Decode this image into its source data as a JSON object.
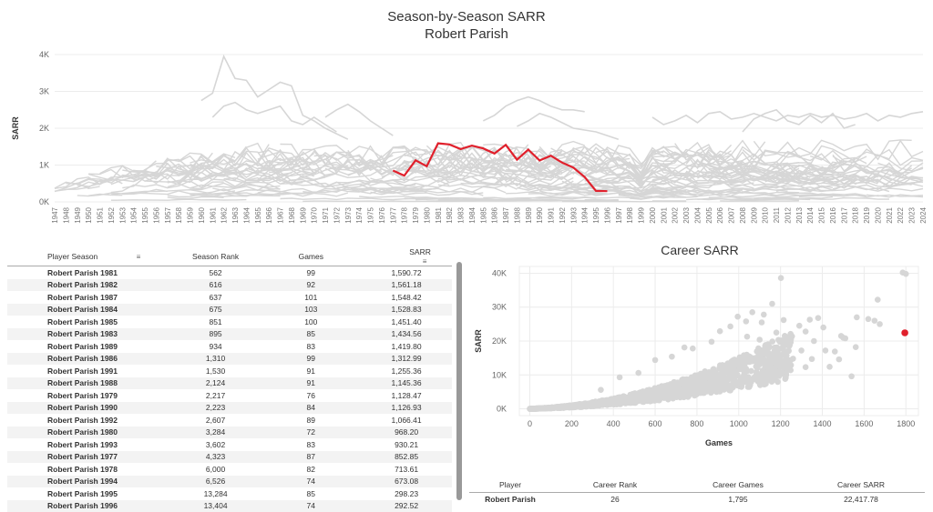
{
  "page": {
    "title": "Season-by-Season SARR",
    "subtitle": "Robert Parish",
    "career_title": "Career SARR"
  },
  "season_table": {
    "headers": [
      "Player Season",
      "Season Rank",
      "Games",
      "SARR"
    ],
    "rows": [
      [
        "Robert Parish 1981",
        "562",
        "99",
        "1,590.72"
      ],
      [
        "Robert Parish 1982",
        "616",
        "92",
        "1,561.18"
      ],
      [
        "Robert Parish 1987",
        "637",
        "101",
        "1,548.42"
      ],
      [
        "Robert Parish 1984",
        "675",
        "103",
        "1,528.83"
      ],
      [
        "Robert Parish 1985",
        "851",
        "100",
        "1,451.40"
      ],
      [
        "Robert Parish 1983",
        "895",
        "85",
        "1,434.56"
      ],
      [
        "Robert Parish 1989",
        "934",
        "83",
        "1,419.80"
      ],
      [
        "Robert Parish 1986",
        "1,310",
        "99",
        "1,312.99"
      ],
      [
        "Robert Parish 1991",
        "1,530",
        "91",
        "1,255.36"
      ],
      [
        "Robert Parish 1988",
        "2,124",
        "91",
        "1,145.36"
      ],
      [
        "Robert Parish 1979",
        "2,217",
        "76",
        "1,128.47"
      ],
      [
        "Robert Parish 1990",
        "2,223",
        "84",
        "1,126.93"
      ],
      [
        "Robert Parish 1992",
        "2,607",
        "89",
        "1,066.41"
      ],
      [
        "Robert Parish 1980",
        "3,284",
        "72",
        "968.20"
      ],
      [
        "Robert Parish 1993",
        "3,602",
        "83",
        "930.21"
      ],
      [
        "Robert Parish 1977",
        "4,323",
        "87",
        "852.85"
      ],
      [
        "Robert Parish 1978",
        "6,000",
        "82",
        "713.61"
      ],
      [
        "Robert Parish 1994",
        "6,526",
        "74",
        "673.08"
      ],
      [
        "Robert Parish 1995",
        "13,284",
        "85",
        "298.23"
      ],
      [
        "Robert Parish 1996",
        "13,404",
        "74",
        "292.52"
      ]
    ]
  },
  "career_table": {
    "headers": [
      "Player",
      "Career Rank",
      "Career Games",
      "Career SARR"
    ],
    "row": [
      "Robert Parish",
      "26",
      "1,795",
      "22,417.78"
    ]
  },
  "colors": {
    "highlight": "#e0202c",
    "background_series": "#d6d6d6",
    "grid": "#ececec"
  },
  "chart_data": [
    {
      "type": "line",
      "title": "Season-by-Season SARR",
      "subtitle": "Robert Parish",
      "xlabel": "",
      "ylabel": "SARR",
      "xlim": [
        1947,
        2024
      ],
      "ylim": [
        0,
        4000
      ],
      "y_ticks": [
        "0K",
        "1K",
        "2K",
        "3K",
        "4K"
      ],
      "grid": true,
      "highlight_series": {
        "name": "Robert Parish",
        "x": [
          1977,
          1978,
          1979,
          1980,
          1981,
          1982,
          1983,
          1984,
          1985,
          1986,
          1987,
          1988,
          1989,
          1990,
          1991,
          1992,
          1993,
          1994,
          1995,
          1996
        ],
        "y": [
          852.85,
          713.61,
          1128.47,
          968.2,
          1590.72,
          1561.18,
          1434.56,
          1528.83,
          1451.4,
          1312.99,
          1548.42,
          1145.36,
          1419.8,
          1126.93,
          1255.36,
          1066.41,
          930.21,
          673.08,
          298.23,
          292.52
        ]
      },
      "background_series": [
        {
          "x": [
            1960,
            1961,
            1962,
            1963,
            1964,
            1965,
            1966,
            1967,
            1968,
            1969,
            1970,
            1971,
            1972,
            1973
          ],
          "y": [
            2750,
            2950,
            3950,
            3350,
            3300,
            2850,
            3050,
            3250,
            3150,
            2350,
            2200,
            2000,
            1850,
            1700
          ]
        },
        {
          "x": [
            1961,
            1962,
            1963,
            1964,
            1965,
            1966,
            1967,
            1968,
            1969,
            1970,
            1971,
            1972
          ],
          "y": [
            2300,
            2600,
            2700,
            2500,
            2400,
            2500,
            2600,
            2200,
            2100,
            2300,
            2100,
            1900
          ]
        },
        {
          "x": [
            1971,
            1972,
            1973,
            1974,
            1975,
            1976,
            1977
          ],
          "y": [
            2300,
            2500,
            2650,
            2450,
            2200,
            2000,
            1800
          ]
        },
        {
          "x": [
            1985,
            1986,
            1987,
            1988,
            1989,
            1990,
            1991,
            1992,
            1993,
            1994
          ],
          "y": [
            2200,
            2350,
            2600,
            2750,
            2850,
            2750,
            2600,
            2500,
            2500,
            2450
          ]
        },
        {
          "x": [
            1988,
            1989,
            1990,
            1991,
            1992,
            1993,
            1994,
            1995,
            1996,
            1997
          ],
          "y": [
            2050,
            2200,
            2400,
            2300,
            2150,
            2000,
            1950,
            1900,
            1800,
            1700
          ]
        },
        {
          "x": [
            2000,
            2001,
            2002,
            2003,
            2004,
            2005,
            2006,
            2007,
            2008,
            2009,
            2010,
            2011,
            2012,
            2013,
            2014,
            2015,
            2016,
            2017,
            2018,
            2019,
            2020,
            2021,
            2022,
            2023,
            2024
          ],
          "y": [
            2300,
            2100,
            2200,
            2350,
            2150,
            2400,
            2450,
            2250,
            2300,
            2400,
            2300,
            2200,
            2350,
            2300,
            2400,
            2300,
            2350,
            2250,
            2300,
            2400,
            2200,
            2350,
            2300,
            2400,
            2450
          ]
        },
        {
          "x": [
            2008,
            2009,
            2010,
            2011,
            2012,
            2013,
            2014,
            2015,
            2016,
            2017,
            2018
          ],
          "y": [
            1900,
            2250,
            2400,
            2500,
            2200,
            2100,
            2350,
            2150,
            2400,
            2000,
            2100
          ]
        }
      ]
    },
    {
      "type": "scatter",
      "title": "Career SARR",
      "xlabel": "Games",
      "ylabel": "SARR",
      "xlim": [
        -50,
        1860
      ],
      "ylim": [
        -2000,
        42000
      ],
      "x_ticks": [
        "0",
        "200",
        "400",
        "600",
        "800",
        "1000",
        "1200",
        "1400",
        "1600",
        "1800"
      ],
      "y_ticks": [
        "0K",
        "10K",
        "20K",
        "30K",
        "40K"
      ],
      "grid": true,
      "highlight_point": {
        "name": "Robert Parish",
        "x": 1795,
        "y": 22417.78
      },
      "outlier_points": [
        {
          "x": 1202,
          "y": 38600
        },
        {
          "x": 1785,
          "y": 40200
        },
        {
          "x": 1800,
          "y": 39800
        },
        {
          "x": 1665,
          "y": 32200
        },
        {
          "x": 1620,
          "y": 26500
        },
        {
          "x": 1650,
          "y": 26000
        },
        {
          "x": 1675,
          "y": 25000
        },
        {
          "x": 1565,
          "y": 27000
        },
        {
          "x": 1560,
          "y": 18200
        },
        {
          "x": 1540,
          "y": 9600
        },
        {
          "x": 1490,
          "y": 21500
        },
        {
          "x": 1500,
          "y": 21000
        },
        {
          "x": 1510,
          "y": 20800
        },
        {
          "x": 1415,
          "y": 17200
        },
        {
          "x": 1435,
          "y": 12400
        },
        {
          "x": 1380,
          "y": 26800
        },
        {
          "x": 1360,
          "y": 20000
        },
        {
          "x": 1405,
          "y": 24000
        },
        {
          "x": 1340,
          "y": 26300
        },
        {
          "x": 1290,
          "y": 24500
        },
        {
          "x": 1215,
          "y": 26200
        },
        {
          "x": 1160,
          "y": 31000
        },
        {
          "x": 1110,
          "y": 25500
        },
        {
          "x": 1035,
          "y": 25800
        },
        {
          "x": 995,
          "y": 27200
        },
        {
          "x": 1065,
          "y": 28500
        },
        {
          "x": 1120,
          "y": 27800
        },
        {
          "x": 1320,
          "y": 22800
        },
        {
          "x": 1255,
          "y": 21400
        },
        {
          "x": 1460,
          "y": 16900
        },
        {
          "x": 1480,
          "y": 14600
        },
        {
          "x": 1300,
          "y": 17200
        },
        {
          "x": 1260,
          "y": 14800
        },
        {
          "x": 1350,
          "y": 14700
        },
        {
          "x": 1320,
          "y": 12300
        },
        {
          "x": 1220,
          "y": 19000
        },
        {
          "x": 1180,
          "y": 22500
        },
        {
          "x": 1100,
          "y": 20400
        },
        {
          "x": 1040,
          "y": 21300
        },
        {
          "x": 960,
          "y": 24300
        },
        {
          "x": 910,
          "y": 22900
        },
        {
          "x": 870,
          "y": 19800
        },
        {
          "x": 780,
          "y": 17800
        },
        {
          "x": 740,
          "y": 18100
        },
        {
          "x": 680,
          "y": 15400
        },
        {
          "x": 600,
          "y": 14400
        },
        {
          "x": 520,
          "y": 10600
        },
        {
          "x": 430,
          "y": 9300
        },
        {
          "x": 340,
          "y": 5600
        }
      ],
      "dense_cloud_note": "Thousands of additional gray player points fill the region from 0 to about 1,300 games."
    }
  ]
}
